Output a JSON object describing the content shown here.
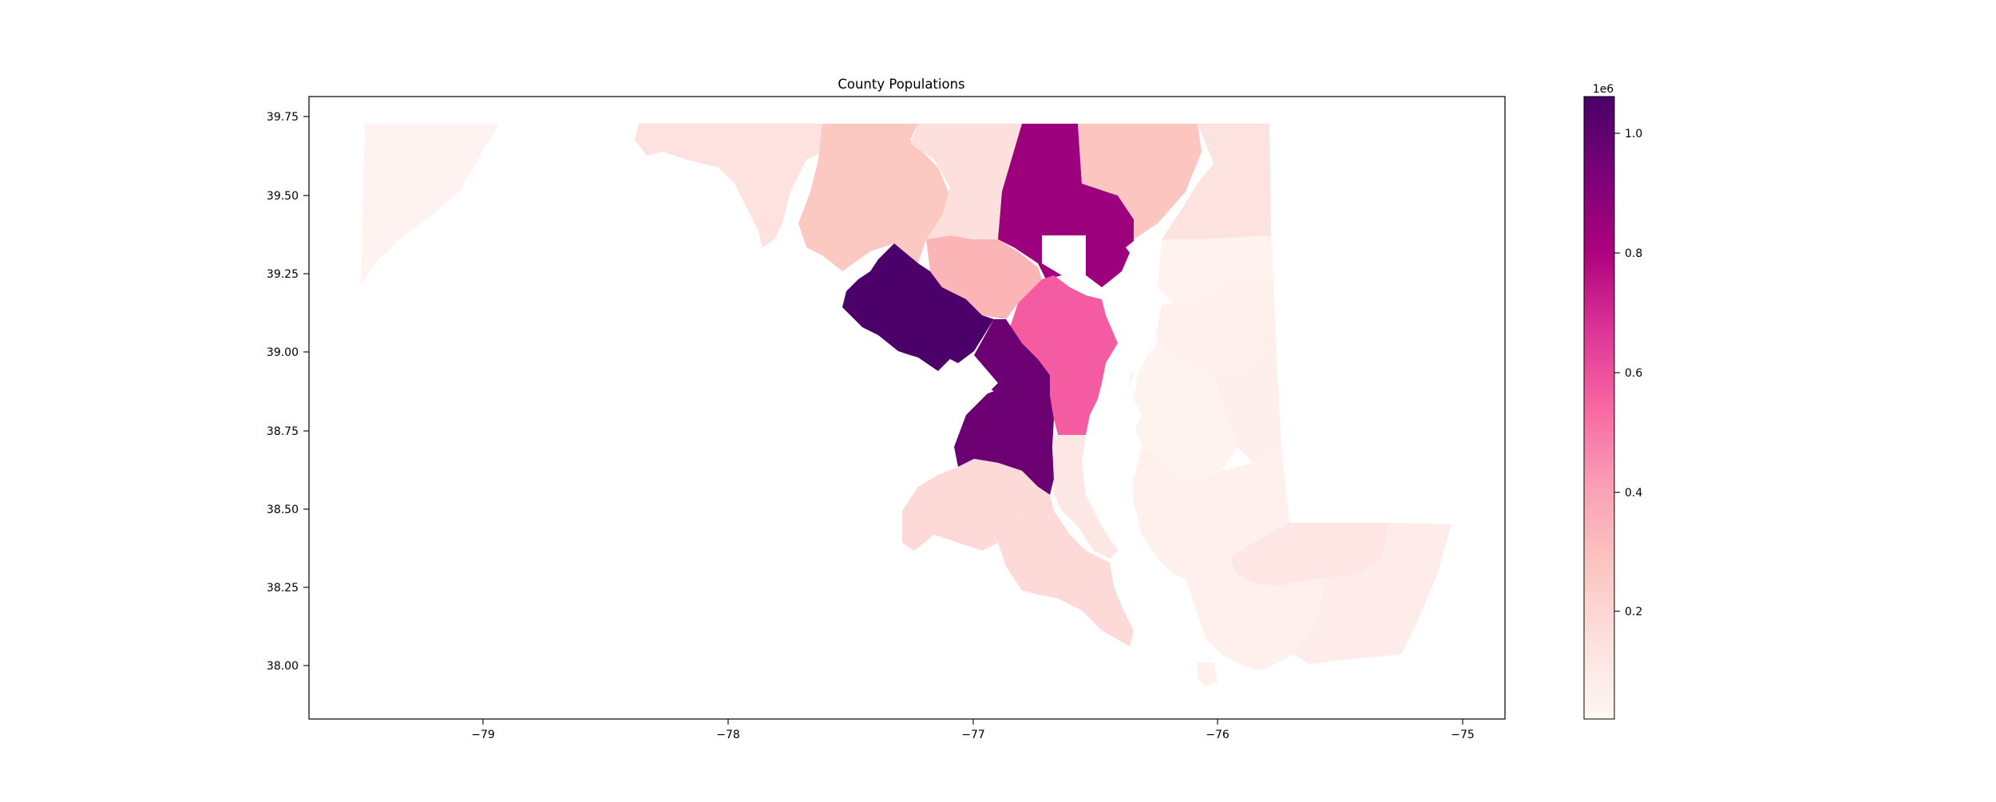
{
  "title": "County Populations",
  "x_tick_labels": [
    "−79",
    "−78",
    "−77",
    "−76",
    "−75"
  ],
  "y_tick_labels": [
    "39.75",
    "39.50",
    "39.25",
    "39.00",
    "38.75",
    "38.50",
    "38.25",
    "38.00"
  ],
  "colorbar": {
    "exponent_label": "1e6",
    "tick_labels": [
      "1.0",
      "0.8",
      "0.6",
      "0.4",
      "0.2"
    ],
    "colormap": "RdPu",
    "color_stops": [
      "#fff7f3",
      "#fde0dd",
      "#fcc5c0",
      "#fa9fb5",
      "#f768a1",
      "#dd3497",
      "#ae017e",
      "#7a0177",
      "#49006a"
    ]
  },
  "chart_data": {
    "type": "choropleth",
    "title": "County Populations",
    "x_axis": {
      "label": "",
      "range": [
        -79.7,
        -74.83
      ],
      "ticks": [
        -79,
        -78,
        -77,
        -76,
        -75
      ]
    },
    "y_axis": {
      "label": "",
      "range": [
        37.83,
        39.81
      ],
      "ticks": [
        39.75,
        39.5,
        39.25,
        39.0,
        38.75,
        38.5,
        38.25,
        38.0
      ]
    },
    "color_scale": {
      "min": 20000,
      "max": 1060000,
      "multiplier": "1e6"
    },
    "regions": [
      {
        "value": 1050000,
        "centroid_lon": -77.25,
        "centroid_lat": 39.12
      },
      {
        "value": 910000,
        "centroid_lon": -76.85,
        "centroid_lat": 38.84
      },
      {
        "value": 830000,
        "centroid_lon": -76.6,
        "centroid_lat": 39.45
      },
      {
        "value": 570000,
        "centroid_lon": -76.6,
        "centroid_lat": 39.0
      },
      {
        "value": 330000,
        "centroid_lon": -76.95,
        "centroid_lat": 39.28
      },
      {
        "value": 260000,
        "centroid_lon": -77.35,
        "centroid_lat": 39.5
      },
      {
        "value": 250000,
        "centroid_lon": -76.35,
        "centroid_lat": 39.55
      },
      {
        "value": 170000,
        "centroid_lon": -76.98,
        "centroid_lat": 39.6
      },
      {
        "value": 160000,
        "centroid_lon": -77.8,
        "centroid_lat": 39.6
      },
      {
        "value": 160000,
        "centroid_lon": -76.95,
        "centroid_lat": 38.5
      },
      {
        "value": 110000,
        "centroid_lon": -76.6,
        "centroid_lat": 38.3
      },
      {
        "value": 100000,
        "centroid_lon": -75.9,
        "centroid_lat": 38.4
      },
      {
        "value": 90000,
        "centroid_lon": -76.55,
        "centroid_lat": 38.55
      },
      {
        "value": 100000,
        "centroid_lon": -75.9,
        "centroid_lat": 39.57
      },
      {
        "value": 70000,
        "centroid_lon": -79.2,
        "centroid_lat": 39.5
      },
      {
        "value": 60000,
        "centroid_lon": -75.4,
        "centroid_lat": 38.3
      },
      {
        "value": 50000,
        "centroid_lon": -75.95,
        "centroid_lat": 39.0
      },
      {
        "value": 50000,
        "centroid_lon": -76.0,
        "centroid_lat": 38.7
      },
      {
        "value": 40000,
        "centroid_lon": -75.85,
        "centroid_lat": 38.9
      },
      {
        "value": 33000,
        "centroid_lon": -76.05,
        "centroid_lat": 38.35
      },
      {
        "value": 30000,
        "centroid_lon": -75.9,
        "centroid_lat": 38.1
      },
      {
        "value": 25000,
        "centroid_lon": -75.8,
        "centroid_lat": 39.25
      }
    ]
  }
}
